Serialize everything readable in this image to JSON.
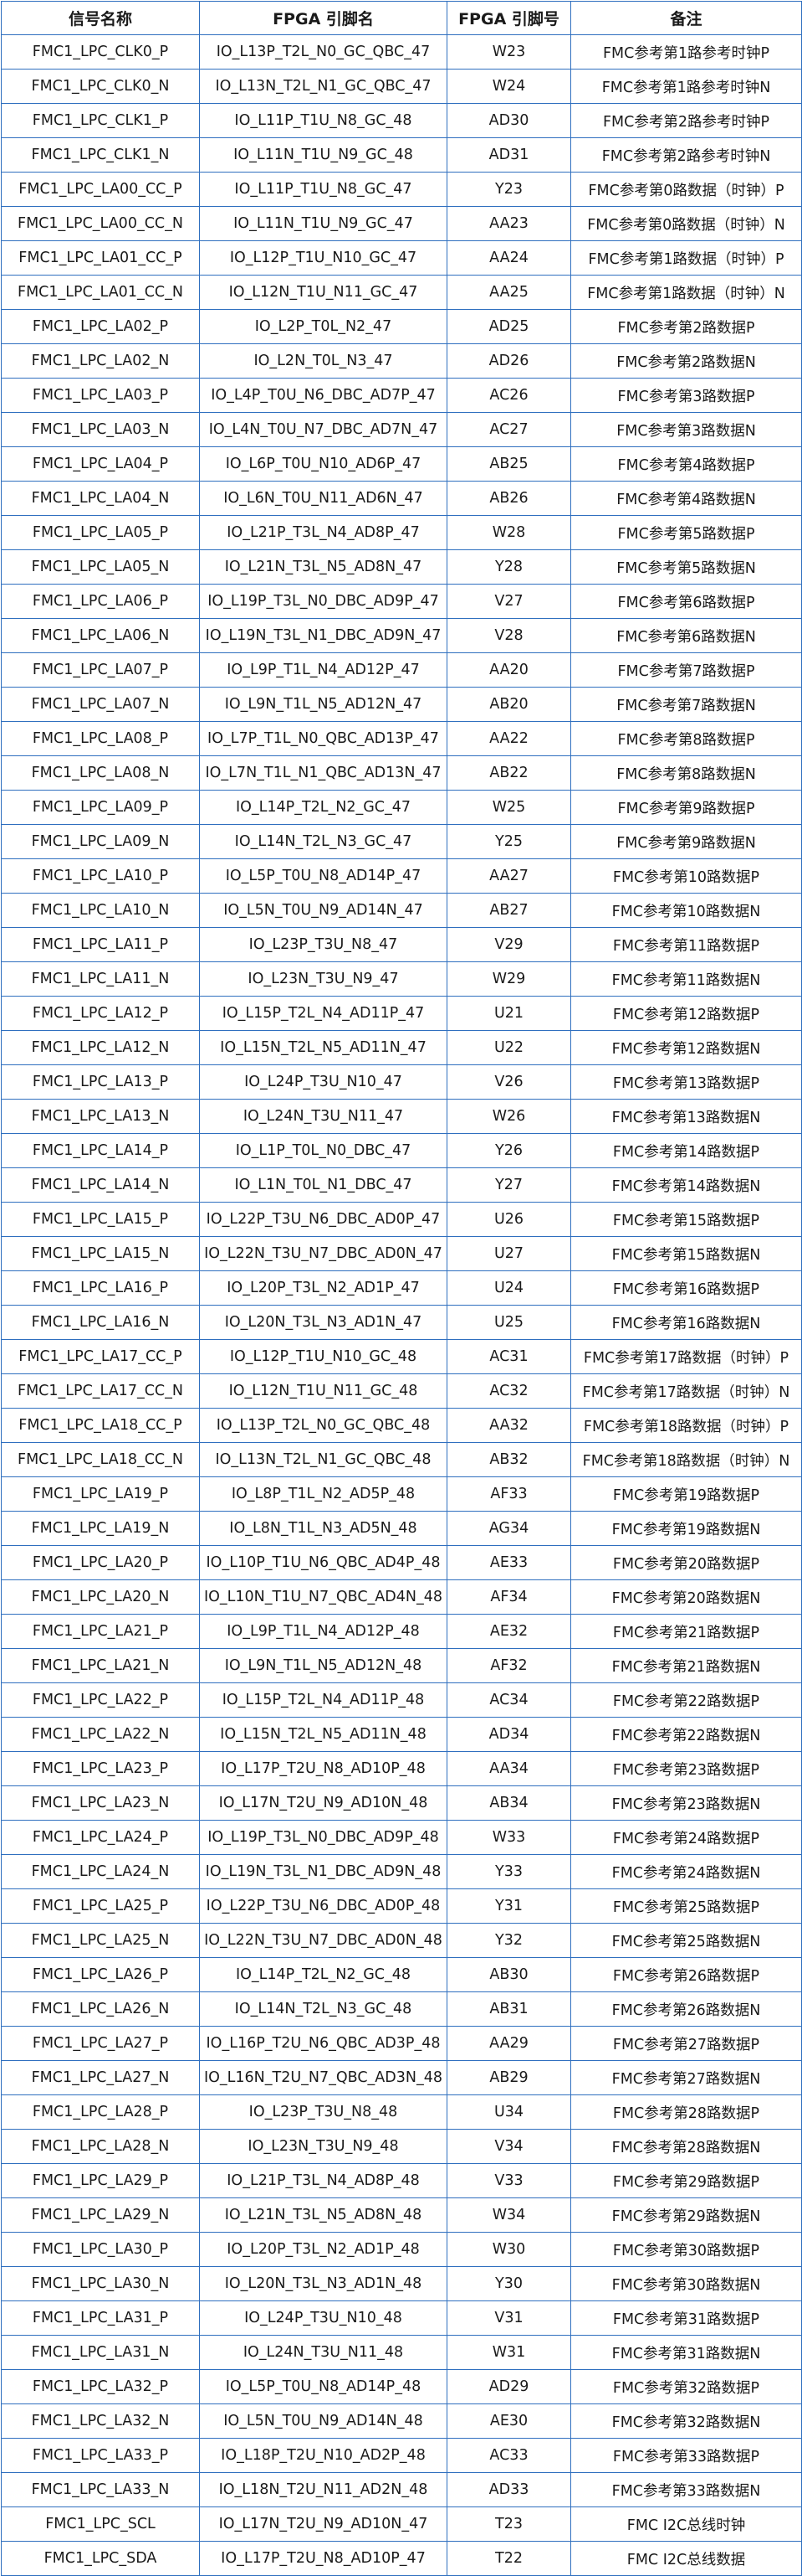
{
  "table": {
    "headers": [
      "信号名称",
      "FPGA 引脚名",
      "FPGA 引脚号",
      "备注"
    ],
    "rows": [
      [
        "FMC1_LPC_CLK0_P",
        "IO_L13P_T2L_N0_GC_QBC_47",
        "W23",
        "FMC参考第1路参考时钟P"
      ],
      [
        "FMC1_LPC_CLK0_N",
        "IO_L13N_T2L_N1_GC_QBC_47",
        "W24",
        "FMC参考第1路参考时钟N"
      ],
      [
        "FMC1_LPC_CLK1_P",
        "IO_L11P_T1U_N8_GC_48",
        "AD30",
        "FMC参考第2路参考时钟P"
      ],
      [
        "FMC1_LPC_CLK1_N",
        "IO_L11N_T1U_N9_GC_48",
        "AD31",
        "FMC参考第2路参考时钟N"
      ],
      [
        "FMC1_LPC_LA00_CC_P",
        "IO_L11P_T1U_N8_GC_47",
        "Y23",
        "FMC参考第0路数据（时钟）P"
      ],
      [
        "FMC1_LPC_LA00_CC_N",
        "IO_L11N_T1U_N9_GC_47",
        "AA23",
        "FMC参考第0路数据（时钟）N"
      ],
      [
        "FMC1_LPC_LA01_CC_P",
        "IO_L12P_T1U_N10_GC_47",
        "AA24",
        "FMC参考第1路数据（时钟）P"
      ],
      [
        "FMC1_LPC_LA01_CC_N",
        "IO_L12N_T1U_N11_GC_47",
        "AA25",
        "FMC参考第1路数据（时钟）N"
      ],
      [
        "FMC1_LPC_LA02_P",
        "IO_L2P_T0L_N2_47",
        "AD25",
        "FMC参考第2路数据P"
      ],
      [
        "FMC1_LPC_LA02_N",
        "IO_L2N_T0L_N3_47",
        "AD26",
        "FMC参考第2路数据N"
      ],
      [
        "FMC1_LPC_LA03_P",
        "IO_L4P_T0U_N6_DBC_AD7P_47",
        "AC26",
        "FMC参考第3路数据P"
      ],
      [
        "FMC1_LPC_LA03_N",
        "IO_L4N_T0U_N7_DBC_AD7N_47",
        "AC27",
        "FMC参考第3路数据N"
      ],
      [
        "FMC1_LPC_LA04_P",
        "IO_L6P_T0U_N10_AD6P_47",
        "AB25",
        "FMC参考第4路数据P"
      ],
      [
        "FMC1_LPC_LA04_N",
        "IO_L6N_T0U_N11_AD6N_47",
        "AB26",
        "FMC参考第4路数据N"
      ],
      [
        "FMC1_LPC_LA05_P",
        "IO_L21P_T3L_N4_AD8P_47",
        "W28",
        "FMC参考第5路数据P"
      ],
      [
        "FMC1_LPC_LA05_N",
        "IO_L21N_T3L_N5_AD8N_47",
        "Y28",
        "FMC参考第5路数据N"
      ],
      [
        "FMC1_LPC_LA06_P",
        "IO_L19P_T3L_N0_DBC_AD9P_47",
        "V27",
        "FMC参考第6路数据P"
      ],
      [
        "FMC1_LPC_LA06_N",
        "IO_L19N_T3L_N1_DBC_AD9N_47",
        "V28",
        "FMC参考第6路数据N"
      ],
      [
        "FMC1_LPC_LA07_P",
        "IO_L9P_T1L_N4_AD12P_47",
        "AA20",
        "FMC参考第7路数据P"
      ],
      [
        "FMC1_LPC_LA07_N",
        "IO_L9N_T1L_N5_AD12N_47",
        "AB20",
        "FMC参考第7路数据N"
      ],
      [
        "FMC1_LPC_LA08_P",
        "IO_L7P_T1L_N0_QBC_AD13P_47",
        "AA22",
        "FMC参考第8路数据P"
      ],
      [
        "FMC1_LPC_LA08_N",
        "IO_L7N_T1L_N1_QBC_AD13N_47",
        "AB22",
        "FMC参考第8路数据N"
      ],
      [
        "FMC1_LPC_LA09_P",
        "IO_L14P_T2L_N2_GC_47",
        "W25",
        "FMC参考第9路数据P"
      ],
      [
        "FMC1_LPC_LA09_N",
        "IO_L14N_T2L_N3_GC_47",
        "Y25",
        "FMC参考第9路数据N"
      ],
      [
        "FMC1_LPC_LA10_P",
        "IO_L5P_T0U_N8_AD14P_47",
        "AA27",
        "FMC参考第10路数据P"
      ],
      [
        "FMC1_LPC_LA10_N",
        "IO_L5N_T0U_N9_AD14N_47",
        "AB27",
        "FMC参考第10路数据N"
      ],
      [
        "FMC1_LPC_LA11_P",
        "IO_L23P_T3U_N8_47",
        "V29",
        "FMC参考第11路数据P"
      ],
      [
        "FMC1_LPC_LA11_N",
        "IO_L23N_T3U_N9_47",
        "W29",
        "FMC参考第11路数据N"
      ],
      [
        "FMC1_LPC_LA12_P",
        "IO_L15P_T2L_N4_AD11P_47",
        "U21",
        "FMC参考第12路数据P"
      ],
      [
        "FMC1_LPC_LA12_N",
        "IO_L15N_T2L_N5_AD11N_47",
        "U22",
        "FMC参考第12路数据N"
      ],
      [
        "FMC1_LPC_LA13_P",
        "IO_L24P_T3U_N10_47",
        "V26",
        "FMC参考第13路数据P"
      ],
      [
        "FMC1_LPC_LA13_N",
        "IO_L24N_T3U_N11_47",
        "W26",
        "FMC参考第13路数据N"
      ],
      [
        "FMC1_LPC_LA14_P",
        "IO_L1P_T0L_N0_DBC_47",
        "Y26",
        "FMC参考第14路数据P"
      ],
      [
        "FMC1_LPC_LA14_N",
        "IO_L1N_T0L_N1_DBC_47",
        "Y27",
        "FMC参考第14路数据N"
      ],
      [
        "FMC1_LPC_LA15_P",
        "IO_L22P_T3U_N6_DBC_AD0P_47",
        "U26",
        "FMC参考第15路数据P"
      ],
      [
        "FMC1_LPC_LA15_N",
        "IO_L22N_T3U_N7_DBC_AD0N_47",
        "U27",
        "FMC参考第15路数据N"
      ],
      [
        "FMC1_LPC_LA16_P",
        "IO_L20P_T3L_N2_AD1P_47",
        "U24",
        "FMC参考第16路数据P"
      ],
      [
        "FMC1_LPC_LA16_N",
        "IO_L20N_T3L_N3_AD1N_47",
        "U25",
        "FMC参考第16路数据N"
      ],
      [
        "FMC1_LPC_LA17_CC_P",
        "IO_L12P_T1U_N10_GC_48",
        "AC31",
        "FMC参考第17路数据（时钟）P"
      ],
      [
        "FMC1_LPC_LA17_CC_N",
        "IO_L12N_T1U_N11_GC_48",
        "AC32",
        "FMC参考第17路数据（时钟）N"
      ],
      [
        "FMC1_LPC_LA18_CC_P",
        "IO_L13P_T2L_N0_GC_QBC_48",
        "AA32",
        "FMC参考第18路数据（时钟）P"
      ],
      [
        "FMC1_LPC_LA18_CC_N",
        "IO_L13N_T2L_N1_GC_QBC_48",
        "AB32",
        "FMC参考第18路数据（时钟）N"
      ],
      [
        "FMC1_LPC_LA19_P",
        "IO_L8P_T1L_N2_AD5P_48",
        "AF33",
        "FMC参考第19路数据P"
      ],
      [
        "FMC1_LPC_LA19_N",
        "IO_L8N_T1L_N3_AD5N_48",
        "AG34",
        "FMC参考第19路数据N"
      ],
      [
        "FMC1_LPC_LA20_P",
        "IO_L10P_T1U_N6_QBC_AD4P_48",
        "AE33",
        "FMC参考第20路数据P"
      ],
      [
        "FMC1_LPC_LA20_N",
        "IO_L10N_T1U_N7_QBC_AD4N_48",
        "AF34",
        "FMC参考第20路数据N"
      ],
      [
        "FMC1_LPC_LA21_P",
        "IO_L9P_T1L_N4_AD12P_48",
        "AE32",
        "FMC参考第21路数据P"
      ],
      [
        "FMC1_LPC_LA21_N",
        "IO_L9N_T1L_N5_AD12N_48",
        "AF32",
        "FMC参考第21路数据N"
      ],
      [
        "FMC1_LPC_LA22_P",
        "IO_L15P_T2L_N4_AD11P_48",
        "AC34",
        "FMC参考第22路数据P"
      ],
      [
        "FMC1_LPC_LA22_N",
        "IO_L15N_T2L_N5_AD11N_48",
        "AD34",
        "FMC参考第22路数据N"
      ],
      [
        "FMC1_LPC_LA23_P",
        "IO_L17P_T2U_N8_AD10P_48",
        "AA34",
        "FMC参考第23路数据P"
      ],
      [
        "FMC1_LPC_LA23_N",
        "IO_L17N_T2U_N9_AD10N_48",
        "AB34",
        "FMC参考第23路数据N"
      ],
      [
        "FMC1_LPC_LA24_P",
        "IO_L19P_T3L_N0_DBC_AD9P_48",
        "W33",
        "FMC参考第24路数据P"
      ],
      [
        "FMC1_LPC_LA24_N",
        "IO_L19N_T3L_N1_DBC_AD9N_48",
        "Y33",
        "FMC参考第24路数据N"
      ],
      [
        "FMC1_LPC_LA25_P",
        "IO_L22P_T3U_N6_DBC_AD0P_48",
        "Y31",
        "FMC参考第25路数据P"
      ],
      [
        "FMC1_LPC_LA25_N",
        "IO_L22N_T3U_N7_DBC_AD0N_48",
        "Y32",
        "FMC参考第25路数据N"
      ],
      [
        "FMC1_LPC_LA26_P",
        "IO_L14P_T2L_N2_GC_48",
        "AB30",
        "FMC参考第26路数据P"
      ],
      [
        "FMC1_LPC_LA26_N",
        "IO_L14N_T2L_N3_GC_48",
        "AB31",
        "FMC参考第26路数据N"
      ],
      [
        "FMC1_LPC_LA27_P",
        "IO_L16P_T2U_N6_QBC_AD3P_48",
        "AA29",
        "FMC参考第27路数据P"
      ],
      [
        "FMC1_LPC_LA27_N",
        "IO_L16N_T2U_N7_QBC_AD3N_48",
        "AB29",
        "FMC参考第27路数据N"
      ],
      [
        "FMC1_LPC_LA28_P",
        "IO_L23P_T3U_N8_48",
        "U34",
        "FMC参考第28路数据P"
      ],
      [
        "FMC1_LPC_LA28_N",
        "IO_L23N_T3U_N9_48",
        "V34",
        "FMC参考第28路数据N"
      ],
      [
        "FMC1_LPC_LA29_P",
        "IO_L21P_T3L_N4_AD8P_48",
        "V33",
        "FMC参考第29路数据P"
      ],
      [
        "FMC1_LPC_LA29_N",
        "IO_L21N_T3L_N5_AD8N_48",
        "W34",
        "FMC参考第29路数据N"
      ],
      [
        "FMC1_LPC_LA30_P",
        "IO_L20P_T3L_N2_AD1P_48",
        "W30",
        "FMC参考第30路数据P"
      ],
      [
        "FMC1_LPC_LA30_N",
        "IO_L20N_T3L_N3_AD1N_48",
        "Y30",
        "FMC参考第30路数据N"
      ],
      [
        "FMC1_LPC_LA31_P",
        "IO_L24P_T3U_N10_48",
        "V31",
        "FMC参考第31路数据P"
      ],
      [
        "FMC1_LPC_LA31_N",
        "IO_L24N_T3U_N11_48",
        "W31",
        "FMC参考第31路数据N"
      ],
      [
        "FMC1_LPC_LA32_P",
        "IO_L5P_T0U_N8_AD14P_48",
        "AD29",
        "FMC参考第32路数据P"
      ],
      [
        "FMC1_LPC_LA32_N",
        "IO_L5N_T0U_N9_AD14N_48",
        "AE30",
        "FMC参考第32路数据N"
      ],
      [
        "FMC1_LPC_LA33_P",
        "IO_L18P_T2U_N10_AD2P_48",
        "AC33",
        "FMC参考第33路数据P"
      ],
      [
        "FMC1_LPC_LA33_N",
        "IO_L18N_T2U_N11_AD2N_48",
        "AD33",
        "FMC参考第33路数据N"
      ],
      [
        "FMC1_LPC_SCL",
        "IO_L17N_T2U_N9_AD10N_47",
        "T23",
        "FMC I2C总线时钟"
      ],
      [
        "FMC1_LPC_SDA",
        "IO_L17P_T2U_N8_AD10P_47",
        "T22",
        "FMC I2C总线数据"
      ]
    ]
  }
}
